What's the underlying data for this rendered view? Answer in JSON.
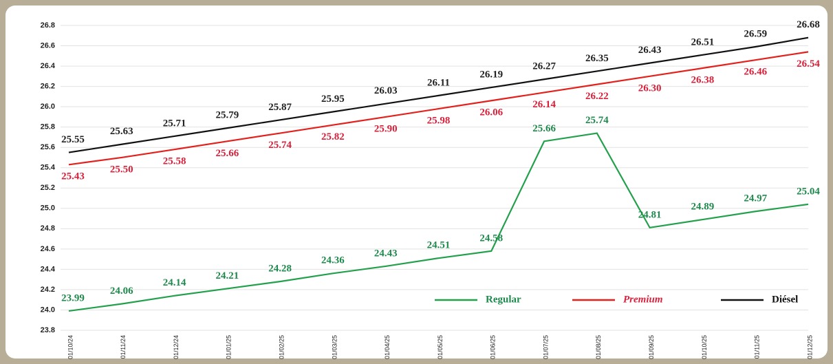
{
  "chart_data": {
    "type": "line",
    "x": [
      "01/10/24",
      "01/11/24",
      "01/12/24",
      "01/01/25",
      "01/02/25",
      "01/03/25",
      "01/04/25",
      "01/05/25",
      "01/06/25",
      "01/07/25",
      "01/08/25",
      "01/09/25",
      "01/10/25",
      "01/11/25",
      "01/12/25"
    ],
    "series": [
      {
        "name": "Regular",
        "color": "#22a04b",
        "label_color": "#1e8a4c",
        "italic": false,
        "label_side": "above",
        "values": [
          23.99,
          24.06,
          24.14,
          24.21,
          24.28,
          24.36,
          24.43,
          24.51,
          24.58,
          25.66,
          25.74,
          24.81,
          24.89,
          24.97,
          25.04
        ],
        "value_labels": [
          "23.99",
          "24.06",
          "24.14",
          "24.21",
          "24.28",
          "24.36",
          "24.43",
          "24.51",
          "24.58",
          "25.66",
          "25.74",
          "24.81",
          "24.89",
          "24.97",
          "25.04"
        ]
      },
      {
        "name": "Premium",
        "color": "#e3201b",
        "label_color": "#d8203a",
        "italic": true,
        "label_side": "below",
        "values": [
          25.43,
          25.5,
          25.58,
          25.66,
          25.74,
          25.82,
          25.9,
          25.98,
          26.06,
          26.14,
          26.22,
          26.3,
          26.38,
          26.46,
          26.54
        ],
        "value_labels": [
          "25.43",
          "25.50",
          "25.58",
          "25.66",
          "25.74",
          "25.82",
          "25.90",
          "25.98",
          "26.06",
          "26.14",
          "26.22",
          "26.30",
          "26.38",
          "26.46",
          "26.54"
        ]
      },
      {
        "name": "Diésel",
        "color": "#111111",
        "label_color": "#222222",
        "italic": false,
        "label_side": "above",
        "values": [
          25.55,
          25.63,
          25.71,
          25.79,
          25.87,
          25.95,
          26.03,
          26.11,
          26.19,
          26.27,
          26.35,
          26.43,
          26.51,
          26.59,
          26.68
        ],
        "value_labels": [
          "25.55",
          "25.63",
          "25.71",
          "25.79",
          "25.87",
          "25.95",
          "26.03",
          "26.11",
          "26.19",
          "26.27",
          "26.35",
          "26.43",
          "26.51",
          "26.59",
          "26.68"
        ]
      }
    ],
    "ylim": [
      23.8,
      26.8
    ],
    "yticks": [
      23.8,
      {
        "value": 24,
        "label": "24.0"
      },
      24.2,
      24.4,
      24.6,
      24.8,
      {
        "value": 25,
        "label": "25.0"
      },
      25.2,
      25.4,
      25.6,
      25.8,
      {
        "value": 26,
        "label": "26.0"
      },
      26.2,
      26.4,
      26.6,
      26.8
    ],
    "grid": true,
    "legend": "lower right"
  }
}
